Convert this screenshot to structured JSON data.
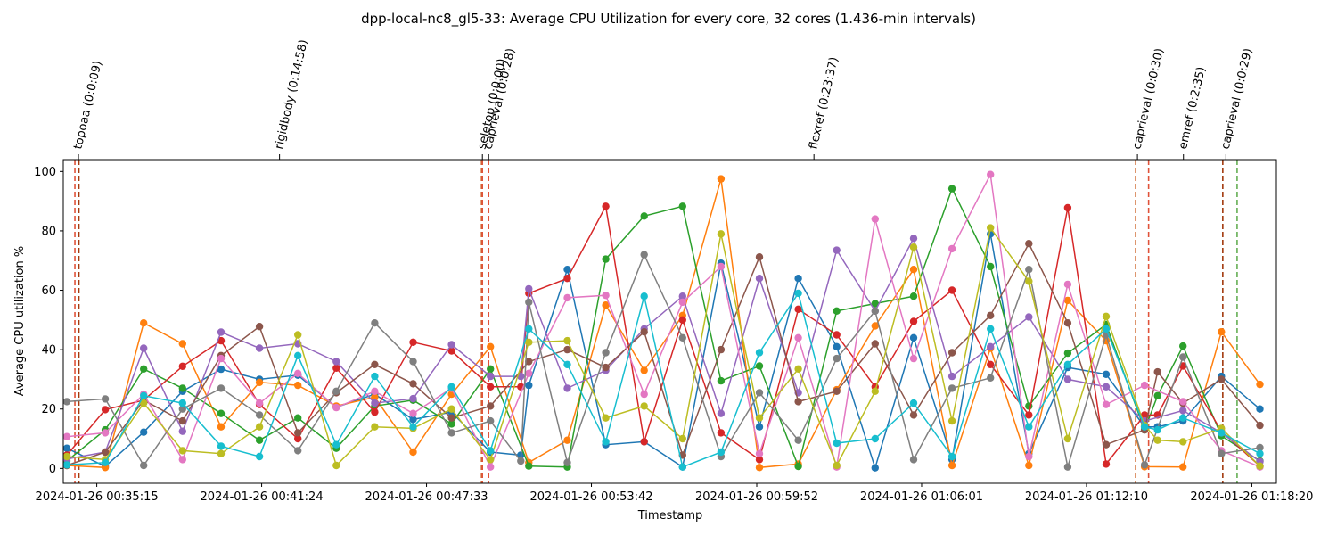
{
  "chart_data": {
    "type": "line",
    "title": "dpp-local-nc8_gl5-33: Average CPU Utilization for every core, 32 cores (1.436-min intervals)",
    "xlabel": "Timestamp",
    "ylabel": "Average CPU utilization %",
    "ylim": [
      -5,
      104
    ],
    "yticks": [
      0,
      20,
      40,
      60,
      80,
      100
    ],
    "x_start": "2024-01-26 00:34:00",
    "x_end": "2024-01-26 01:19:15",
    "xticks": [
      "2024-01-26 00:35:15",
      "2024-01-26 00:41:24",
      "2024-01-26 00:47:33",
      "2024-01-26 00:53:42",
      "2024-01-26 00:59:52",
      "2024-01-26 01:06:01",
      "2024-01-26 01:12:10",
      "2024-01-26 01:18:20"
    ],
    "sample_times": [
      "2024-01-26 00:34:08",
      "2024-01-26 00:35:34",
      "2024-01-26 00:37:00",
      "2024-01-26 00:38:27",
      "2024-01-26 00:39:53",
      "2024-01-26 00:41:19",
      "2024-01-26 00:42:45",
      "2024-01-26 00:44:11",
      "2024-01-26 00:45:37",
      "2024-01-26 00:47:03",
      "2024-01-26 00:48:29",
      "2024-01-26 00:49:56",
      "2024-01-26 00:51:22",
      "2024-01-26 00:52:48",
      "2024-01-26 00:54:14",
      "2024-01-26 00:55:40",
      "2024-01-26 00:57:06",
      "2024-01-26 00:58:32",
      "2024-01-26 00:59:58",
      "2024-01-26 01:01:25",
      "2024-01-26 01:02:51",
      "2024-01-26 01:04:17",
      "2024-01-26 01:05:43",
      "2024-01-26 01:07:09",
      "2024-01-26 01:08:35",
      "2024-01-26 01:10:01",
      "2024-01-26 01:11:28",
      "2024-01-26 01:12:54",
      "2024-01-26 01:14:20",
      "2024-01-26 01:15:46",
      "2024-01-26 01:17:12",
      "2024-01-26 01:18:38"
    ],
    "extra_points": [
      {
        "series": 0,
        "time": "2024-01-26 00:51:04",
        "value": 4.5
      },
      {
        "series": 3,
        "time": "2024-01-26 00:51:04",
        "value": 27.5
      },
      {
        "series": 4,
        "time": "2024-01-26 00:51:04",
        "value": 31.0
      },
      {
        "series": 7,
        "time": "2024-01-26 00:51:04",
        "value": 2.5
      },
      {
        "series": 2,
        "time": "2024-01-26 01:14:49",
        "value": 24.5
      },
      {
        "series": 3,
        "time": "2024-01-26 01:14:49",
        "value": 18.0
      },
      {
        "series": 5,
        "time": "2024-01-26 01:14:49",
        "value": 32.5
      },
      {
        "series": 0,
        "time": "2024-01-26 01:14:49",
        "value": 14.0
      },
      {
        "series": 8,
        "time": "2024-01-26 01:14:49",
        "value": 9.5
      },
      {
        "series": 9,
        "time": "2024-01-26 01:14:49",
        "value": 13.0
      }
    ],
    "series": [
      {
        "values": [
          6.8,
          0.7,
          12.2,
          26.0,
          33.4,
          30.0,
          31.4,
          20.6,
          25.0,
          16.5,
          19.0,
          5.5,
          28.0,
          67.0,
          8.0,
          9.0,
          0.5,
          69.1,
          14.0,
          64.0,
          41.0,
          0.2,
          44.0,
          3.0,
          79.0,
          5.0,
          34.0,
          31.7,
          14.0,
          16.0,
          31.0,
          20.0
        ]
      },
      {
        "values": [
          1.0,
          0.3,
          49.0,
          42.0,
          14.0,
          29.0,
          28.0,
          21.0,
          24.0,
          5.5,
          25.0,
          41.0,
          2.0,
          9.5,
          55.0,
          33.0,
          51.5,
          97.5,
          0.3,
          1.5,
          26.5,
          48.0,
          67.0,
          1.0,
          40.5,
          1.0,
          56.6,
          43.0,
          0.6,
          0.5,
          46.0,
          28.3
        ]
      },
      {
        "values": [
          2.5,
          13.0,
          33.5,
          27.0,
          18.5,
          9.5,
          17.0,
          6.8,
          21.0,
          23.0,
          15.0,
          33.5,
          0.8,
          0.5,
          70.5,
          85.0,
          88.3,
          29.5,
          34.5,
          0.7,
          53.0,
          55.5,
          58.0,
          94.2,
          68.0,
          21.0,
          38.8,
          48.5,
          13.0,
          41.2,
          11.0,
          2.5
        ]
      },
      {
        "values": [
          4.5,
          19.8,
          23.0,
          34.4,
          43.0,
          21.5,
          10.0,
          33.8,
          19.0,
          42.5,
          39.6,
          27.5,
          59.0,
          64.0,
          88.3,
          9.0,
          50.0,
          12.0,
          3.0,
          53.6,
          45.0,
          27.5,
          49.5,
          60.0,
          35.0,
          18.0,
          87.8,
          1.5,
          18.0,
          34.5,
          12.5,
          0.8
        ]
      },
      {
        "values": [
          3.2,
          5.5,
          40.5,
          12.5,
          45.9,
          40.5,
          42.0,
          36.0,
          22.0,
          23.5,
          41.7,
          31.0,
          60.5,
          27.0,
          33.0,
          47.0,
          58.0,
          18.5,
          64.0,
          25.5,
          73.5,
          53.0,
          77.5,
          31.0,
          41.0,
          51.0,
          30.0,
          27.5,
          16.0,
          19.5,
          12.0,
          2.3
        ]
      },
      {
        "values": [
          1.0,
          5.5,
          23.0,
          16.0,
          38.0,
          47.8,
          12.0,
          25.5,
          35.0,
          28.5,
          17.0,
          21.0,
          36.0,
          40.0,
          34.0,
          46.0,
          4.5,
          40.0,
          71.2,
          22.5,
          26.0,
          42.0,
          18.0,
          39.0,
          51.5,
          75.7,
          49.0,
          8.0,
          13.0,
          22.0,
          30.0,
          14.5
        ]
      },
      {
        "values": [
          10.7,
          12.0,
          25.0,
          3.0,
          37.0,
          22.0,
          32.0,
          20.5,
          26.0,
          18.5,
          27.0,
          0.5,
          32.0,
          57.5,
          58.3,
          25.0,
          56.0,
          68.0,
          5.0,
          44.0,
          0.5,
          84.0,
          37.0,
          74.0,
          99.0,
          4.0,
          62.0,
          21.5,
          28.0,
          22.5,
          6.0,
          0.5
        ]
      },
      {
        "values": [
          22.5,
          23.4,
          1.0,
          20.0,
          27.0,
          18.0,
          6.0,
          26.0,
          49.0,
          36.0,
          12.0,
          16.0,
          56.0,
          2.0,
          39.0,
          72.0,
          44.0,
          4.0,
          25.5,
          9.5,
          37.0,
          53.0,
          3.0,
          27.0,
          30.5,
          67.0,
          0.5,
          45.0,
          1.2,
          37.5,
          5.0,
          7.0
        ]
      },
      {
        "values": [
          4.0,
          3.0,
          22.0,
          6.0,
          5.0,
          14.0,
          45.0,
          1.0,
          14.0,
          13.5,
          20.0,
          3.0,
          42.5,
          43.0,
          17.0,
          21.0,
          10.0,
          79.0,
          17.0,
          33.5,
          1.0,
          26.0,
          74.5,
          16.0,
          81.0,
          63.0,
          10.0,
          51.2,
          14.5,
          9.0,
          13.5,
          0.8
        ]
      },
      {
        "values": [
          1.2,
          2.0,
          24.5,
          22.0,
          7.5,
          4.0,
          38.0,
          8.0,
          31.0,
          14.0,
          27.5,
          6.0,
          47.0,
          35.0,
          9.0,
          58.0,
          0.5,
          5.5,
          39.0,
          59.0,
          8.5,
          10.0,
          22.0,
          4.0,
          47.0,
          14.0,
          35.0,
          47.0,
          14.0,
          17.0,
          12.0,
          5.0
        ]
      }
    ],
    "events": [
      {
        "label": "topoaa (0:0:09)",
        "time": "2024-01-26 00:34:34",
        "line_times": [
          "2024-01-26 00:34:26",
          "2024-01-26 00:34:35"
        ]
      },
      {
        "label": "rigidbody (0:14:58)",
        "time": "2024-01-26 00:42:04",
        "line_times": []
      },
      {
        "label": "seletop (0:0:00)",
        "time": "2024-01-26 00:49:38",
        "line_times": [
          "2024-01-26 00:49:36",
          "2024-01-26 00:49:38"
        ]
      },
      {
        "label": "caprieval (0:0:28)",
        "time": "2024-01-26 00:49:52",
        "line_times": [
          "2024-01-26 00:49:52"
        ]
      },
      {
        "label": "flexref (0:23:37)",
        "time": "2024-01-26 01:02:00",
        "line_times": []
      },
      {
        "label": "caprieval (0:0:30)",
        "time": "2024-01-26 01:14:04",
        "line_times": [
          "2024-01-26 01:14:00",
          "2024-01-26 01:14:29"
        ]
      },
      {
        "label": "emref (0:2:35)",
        "time": "2024-01-26 01:15:47",
        "line_times": []
      },
      {
        "label": "caprieval (0:0:29)",
        "time": "2024-01-26 01:17:22",
        "line_times": [
          "2024-01-26 01:17:15",
          "2024-01-26 01:17:47"
        ]
      }
    ],
    "event_line_colors": [
      "#e0533a",
      "#a33a0e",
      "#cf6b33"
    ],
    "end_marker_time": "2024-01-26 01:17:47",
    "end_marker_color": "#6cc06c",
    "series_colors": [
      "#1f77b4",
      "#ff7f0e",
      "#2ca02c",
      "#d62728",
      "#9467bd",
      "#8c564b",
      "#e377c2",
      "#7f7f7f",
      "#bcbd22",
      "#17becf"
    ],
    "grid": false,
    "legend": "none"
  }
}
